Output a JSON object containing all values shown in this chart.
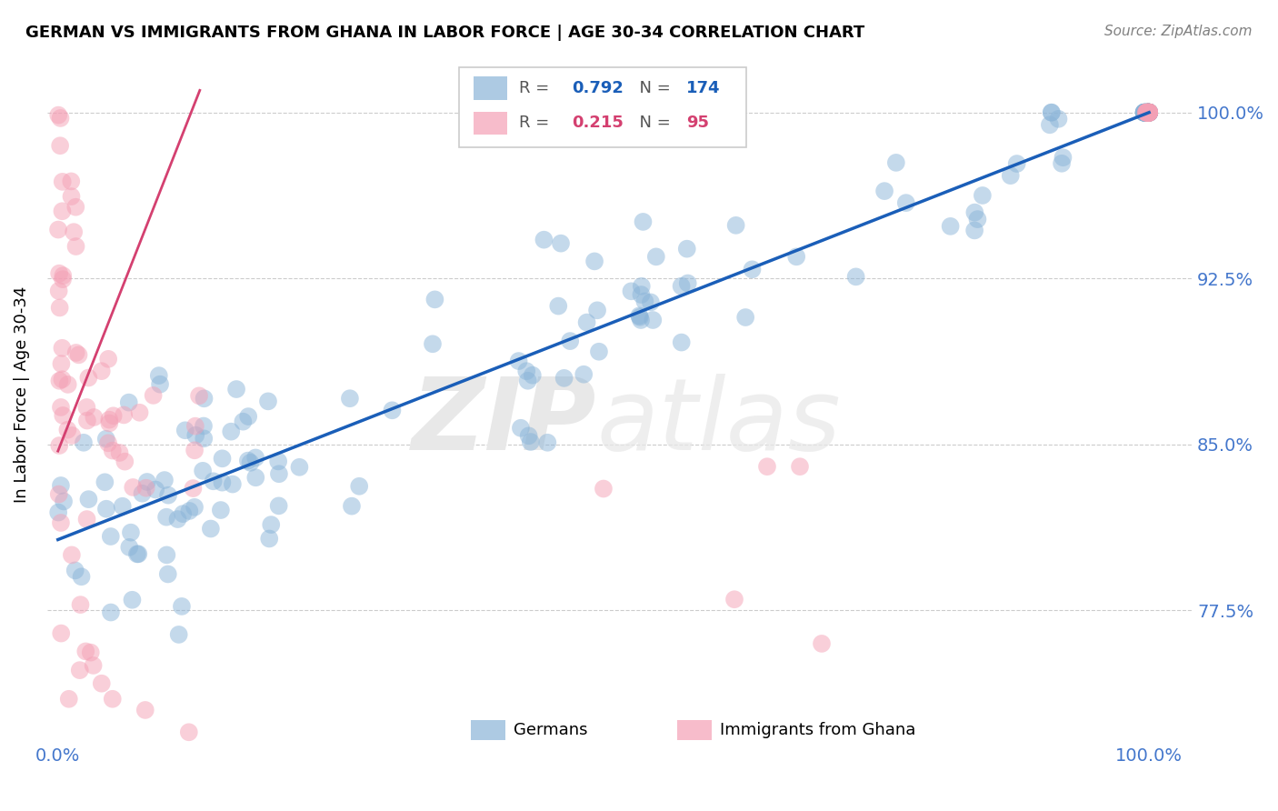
{
  "title": "GERMAN VS IMMIGRANTS FROM GHANA IN LABOR FORCE | AGE 30-34 CORRELATION CHART",
  "source": "Source: ZipAtlas.com",
  "ylabel": "In Labor Force | Age 30-34",
  "xlim": [
    -0.01,
    1.04
  ],
  "ylim": [
    0.715,
    1.03
  ],
  "yticks": [
    0.775,
    0.85,
    0.925,
    1.0
  ],
  "ytick_labels": [
    "77.5%",
    "85.0%",
    "92.5%",
    "100.0%"
  ],
  "xtick_labels": [
    "0.0%",
    "100.0%"
  ],
  "xticks": [
    0.0,
    1.0
  ],
  "blue_R": 0.792,
  "blue_N": 174,
  "pink_R": 0.215,
  "pink_N": 95,
  "blue_color": "#8ab4d8",
  "pink_color": "#f4a0b5",
  "blue_line_color": "#1a5eb8",
  "pink_line_color": "#d44070",
  "tick_color": "#4477cc",
  "grid_color": "#cccccc",
  "legend_label_blue": "Germans",
  "legend_label_pink": "Immigrants from Ghana",
  "blue_line_x": [
    0.0,
    1.0
  ],
  "blue_line_y": [
    0.807,
    1.0
  ],
  "pink_line_x": [
    0.0,
    0.13
  ],
  "pink_line_y": [
    0.847,
    1.01
  ]
}
